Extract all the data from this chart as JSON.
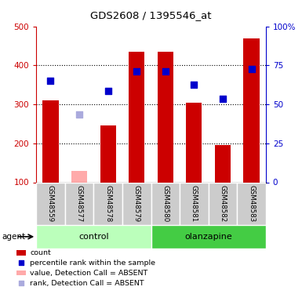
{
  "title": "GDS2608 / 1395546_at",
  "samples": [
    "GSM48559",
    "GSM48577",
    "GSM48578",
    "GSM48579",
    "GSM48580",
    "GSM48581",
    "GSM48582",
    "GSM48583"
  ],
  "bar_heights": [
    310,
    null,
    245,
    435,
    435,
    305,
    195,
    470
  ],
  "bar_color": "#cc0000",
  "bar_absent": [
    null,
    130,
    null,
    null,
    null,
    null,
    null,
    null
  ],
  "bar_absent_color": "#ffaaaa",
  "blue_dots": [
    360,
    null,
    335,
    385,
    385,
    350,
    315,
    390
  ],
  "blue_dot_color": "#0000cc",
  "blue_absent_dots": [
    null,
    275,
    null,
    null,
    null,
    null,
    null,
    null
  ],
  "blue_absent_color": "#aaaadd",
  "ylim_left": [
    100,
    500
  ],
  "yticks_left": [
    100,
    200,
    300,
    400,
    500
  ],
  "yticks_right": [
    0,
    25,
    50,
    75,
    100
  ],
  "ytick_labels_right": [
    "0",
    "25",
    "50",
    "75",
    "100%"
  ],
  "left_tick_color": "#cc0000",
  "right_tick_color": "#0000cc",
  "control_color": "#bbffbb",
  "olanzapine_color": "#44cc44",
  "sample_box_color": "#cccccc",
  "bar_width": 0.55
}
